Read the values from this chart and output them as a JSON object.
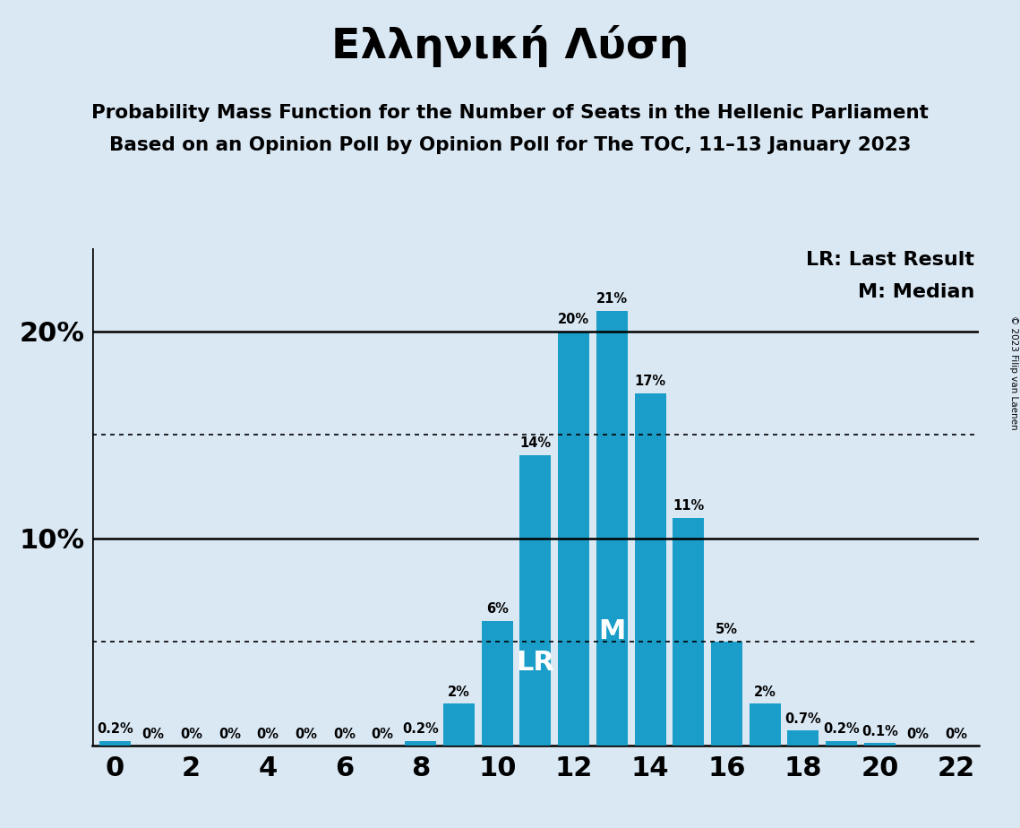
{
  "title": "Ελληνική Λύση",
  "subtitle1": "Probability Mass Function for the Number of Seats in the Hellenic Parliament",
  "subtitle2": "Based on an Opinion Poll by Opinion Poll for The TOC, 11–13 January 2023",
  "copyright": "© 2023 Filip van Laenen",
  "background_color": "#dae8f4",
  "bar_color": "#1a9dc8",
  "x_values": [
    0,
    1,
    2,
    3,
    4,
    5,
    6,
    7,
    8,
    9,
    10,
    11,
    12,
    13,
    14,
    15,
    16,
    17,
    18,
    19,
    20,
    21,
    22
  ],
  "y_values": [
    0.2,
    0.0,
    0.0,
    0.0,
    0.0,
    0.0,
    0.0,
    0.0,
    0.2,
    2.0,
    6.0,
    14.0,
    20.0,
    21.0,
    17.0,
    11.0,
    5.0,
    2.0,
    0.7,
    0.2,
    0.1,
    0.0,
    0.0
  ],
  "bar_labels": [
    "0.2%",
    "0%",
    "0%",
    "0%",
    "0%",
    "0%",
    "0%",
    "0%",
    "0.2%",
    "2%",
    "6%",
    "14%",
    "20%",
    "21%",
    "17%",
    "11%",
    "5%",
    "2%",
    "0.7%",
    "0.2%",
    "0.1%",
    "0%",
    "0%"
  ],
  "xlim": [
    -0.6,
    22.6
  ],
  "ylim": [
    0,
    24
  ],
  "xticks": [
    0,
    2,
    4,
    6,
    8,
    10,
    12,
    14,
    16,
    18,
    20,
    22
  ],
  "ytick_lines": [
    10,
    20
  ],
  "dotted_lines": [
    5,
    15
  ],
  "lr_x": 11,
  "median_x": 13,
  "legend_lr": "LR: Last Result",
  "legend_m": "M: Median"
}
